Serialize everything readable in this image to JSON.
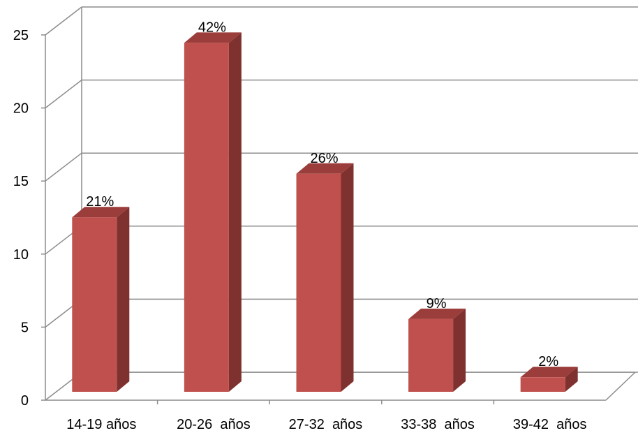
{
  "chart_data": {
    "type": "bar",
    "categories": [
      "14-19 años",
      "20-26  años",
      "27-32  años",
      "33-38  años",
      "39-42  años"
    ],
    "values": [
      12,
      24,
      15,
      5,
      1
    ],
    "data_labels": [
      "21%",
      "42%",
      "26%",
      "9%",
      "2%"
    ],
    "ylim": [
      0,
      25
    ],
    "yticks": [
      "0",
      "5",
      "10",
      "15",
      "20",
      "25"
    ],
    "grid": true,
    "style": "3d-column",
    "colors": {
      "bar_front": "#c0504d",
      "bar_side": "#7f3130",
      "bar_top": "#9b3d3b",
      "grid": "#8c8c8c"
    }
  }
}
